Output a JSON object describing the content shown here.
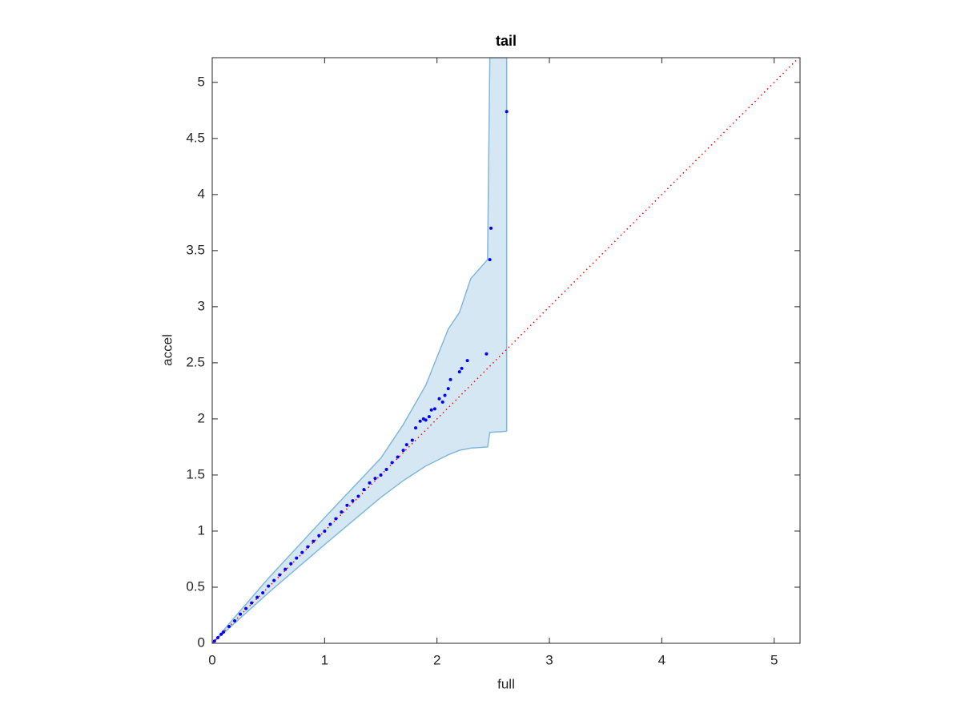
{
  "chart_data": {
    "type": "scatter",
    "title": "tail",
    "xlabel": "full",
    "ylabel": "accel",
    "xlim": [
      0,
      5.23
    ],
    "ylim": [
      0,
      5.22
    ],
    "xticks": [
      0,
      1,
      2,
      3,
      4,
      5
    ],
    "yticks": [
      0,
      0.5,
      1,
      1.5,
      2,
      2.5,
      3,
      3.5,
      4,
      4.5,
      5
    ],
    "band": {
      "color": "#d6e7f4",
      "edge_color": "#80b8dc",
      "x": [
        0,
        0.5,
        1,
        1.5,
        1.7,
        1.9,
        2,
        2.1,
        2.2,
        2.3,
        2.45,
        2.47,
        2.62
      ],
      "upper": [
        0,
        0.58,
        1.12,
        1.65,
        1.95,
        2.3,
        2.55,
        2.8,
        2.95,
        3.25,
        3.42,
        5.22,
        5.22
      ],
      "lower": [
        0,
        0.45,
        0.88,
        1.3,
        1.45,
        1.58,
        1.63,
        1.68,
        1.72,
        1.74,
        1.75,
        1.88,
        1.89
      ]
    },
    "points": {
      "color": "#0000ff",
      "x": [
        0.02,
        0.05,
        0.08,
        0.1,
        0.15,
        0.2,
        0.25,
        0.3,
        0.35,
        0.4,
        0.45,
        0.5,
        0.55,
        0.6,
        0.65,
        0.7,
        0.75,
        0.8,
        0.85,
        0.9,
        0.95,
        1.0,
        1.05,
        1.1,
        1.15,
        1.2,
        1.25,
        1.3,
        1.35,
        1.4,
        1.45,
        1.5,
        1.55,
        1.6,
        1.65,
        1.7,
        1.73,
        1.78,
        1.81,
        1.85,
        1.88,
        1.9,
        1.93,
        1.95,
        1.98,
        2.02,
        2.05,
        2.07,
        2.1,
        2.12,
        2.2,
        2.22,
        2.27,
        2.44,
        2.47,
        2.48,
        2.62
      ],
      "y": [
        0.02,
        0.05,
        0.08,
        0.1,
        0.15,
        0.2,
        0.26,
        0.31,
        0.36,
        0.41,
        0.45,
        0.51,
        0.56,
        0.61,
        0.66,
        0.71,
        0.76,
        0.81,
        0.86,
        0.91,
        0.96,
        1.0,
        1.06,
        1.11,
        1.17,
        1.23,
        1.27,
        1.31,
        1.37,
        1.43,
        1.47,
        1.5,
        1.55,
        1.61,
        1.66,
        1.72,
        1.77,
        1.81,
        1.92,
        1.98,
        2.0,
        1.99,
        2.02,
        2.08,
        2.09,
        2.18,
        2.15,
        2.21,
        2.27,
        2.35,
        2.42,
        2.45,
        2.52,
        2.58,
        3.42,
        3.7,
        4.74
      ]
    },
    "reference": {
      "color": "#ff0000",
      "x": [
        0,
        5.23
      ],
      "y": [
        0,
        5.23
      ]
    }
  }
}
